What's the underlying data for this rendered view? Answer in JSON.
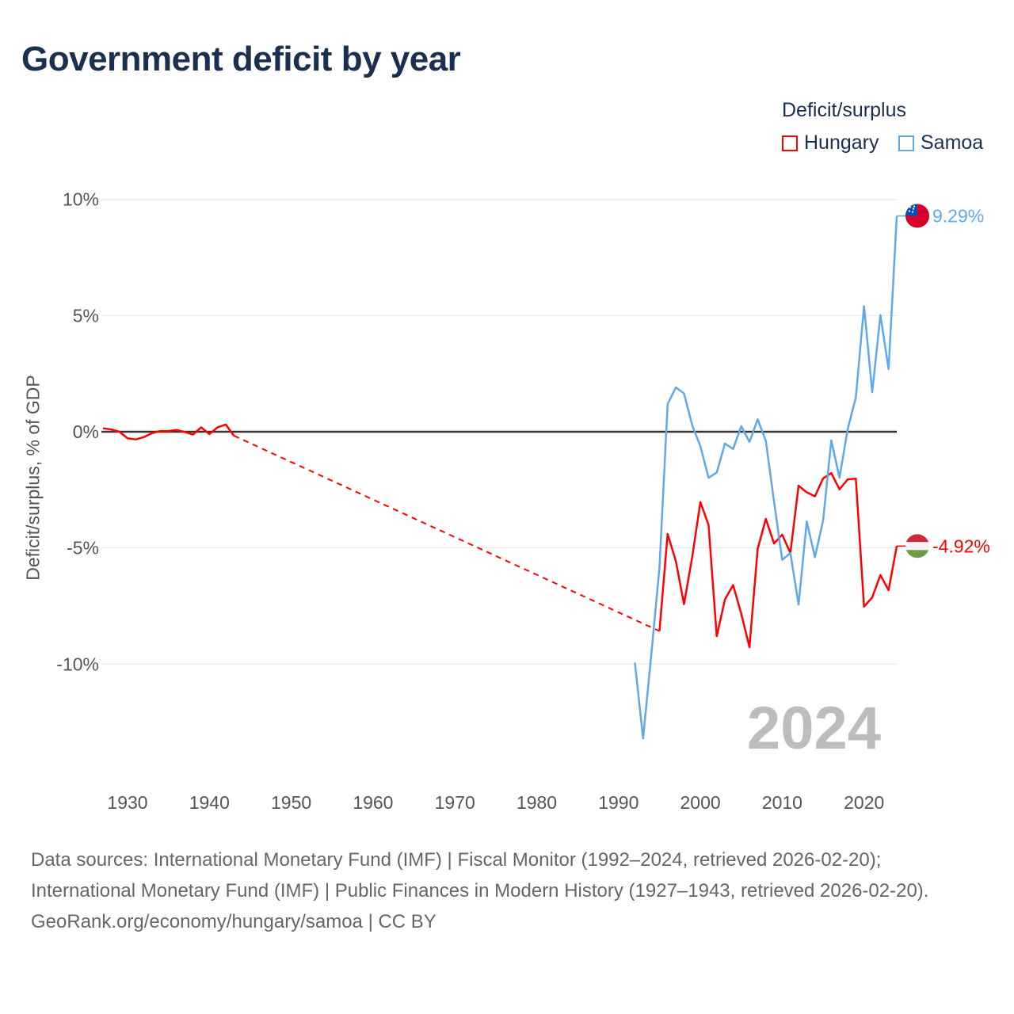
{
  "title": "Government deficit by year",
  "chart_data": {
    "type": "line",
    "title": "Government deficit by year",
    "ylabel": "Deficit/surplus, % of GDP",
    "xlabel": "",
    "legend_title": "Deficit/surplus",
    "legend_position": "top-right",
    "ylim": [
      -14,
      10.5
    ],
    "xlim": [
      1927,
      2024
    ],
    "y_ticks": [
      {
        "v": 10,
        "label": "10%"
      },
      {
        "v": 5,
        "label": "5%"
      },
      {
        "v": 0,
        "label": "0%"
      },
      {
        "v": -5,
        "label": "-5%"
      },
      {
        "v": -10,
        "label": "-10%"
      }
    ],
    "x_ticks": [
      1930,
      1940,
      1950,
      1960,
      1970,
      1980,
      1990,
      2000,
      2010,
      2020
    ],
    "year_watermark": "2024",
    "series": [
      {
        "name": "Hungary",
        "color": "#ff0000",
        "end_label": "-4.92%",
        "x": [
          1927,
          1928,
          1929,
          1930,
          1931,
          1932,
          1933,
          1934,
          1935,
          1936,
          1937,
          1938,
          1939,
          1940,
          1941,
          1942,
          1943,
          1995,
          1996,
          1997,
          1998,
          1999,
          2000,
          2001,
          2002,
          2003,
          2004,
          2005,
          2006,
          2007,
          2008,
          2009,
          2010,
          2011,
          2012,
          2013,
          2014,
          2015,
          2016,
          2017,
          2018,
          2019,
          2020,
          2021,
          2022,
          2023,
          2024
        ],
        "y": [
          0.15,
          0.1,
          0,
          -0.28,
          -0.33,
          -0.23,
          -0.06,
          0.03,
          0.03,
          0.08,
          -0.01,
          -0.12,
          0.19,
          -0.1,
          0.19,
          0.31,
          -0.17,
          -8.58,
          -4.4,
          -5.56,
          -7.42,
          -5.4,
          -3.03,
          -4.01,
          -8.8,
          -7.22,
          -6.6,
          -7.84,
          -9.27,
          -5.05,
          -3.75,
          -4.81,
          -4.43,
          -5.22,
          -2.32,
          -2.61,
          -2.78,
          -2.01,
          -1.78,
          -2.48,
          -2.05,
          -2.02,
          -7.53,
          -7.13,
          -6.17,
          -6.82,
          -4.92
        ],
        "gap_after_year": 1943
      },
      {
        "name": "Samoa",
        "color": "#5fa8ec",
        "end_label": "9.29%",
        "x": [
          1992,
          1993,
          1994,
          1995,
          1996,
          1997,
          1998,
          1999,
          2000,
          2001,
          2002,
          2003,
          2004,
          2005,
          2006,
          2007,
          2008,
          2009,
          2010,
          2011,
          2012,
          2013,
          2014,
          2015,
          2016,
          2017,
          2018,
          2019,
          2020,
          2021,
          2022,
          2023,
          2024
        ],
        "y": [
          -9.94,
          -13.2,
          -9.6,
          -5.85,
          1.19,
          1.91,
          1.65,
          0.28,
          -0.62,
          -1.98,
          -1.76,
          -0.51,
          -0.74,
          0.24,
          -0.44,
          0.54,
          -0.4,
          -3.0,
          -5.51,
          -5.22,
          -7.44,
          -3.86,
          -5.4,
          -3.81,
          -0.37,
          -1.98,
          0.11,
          1.48,
          5.4,
          1.7,
          5.02,
          2.7,
          9.29
        ]
      }
    ]
  },
  "footer": {
    "sources": "Data sources: International Monetary Fund (IMF) | Fiscal Monitor (1992–2024, retrieved 2026-02-20); International Monetary Fund (IMF) | Public Finances in Modern History (1927–1943, retrieved 2026-02-20).",
    "credit": "GeoRank.org/economy/hungary/samoa | CC BY"
  }
}
